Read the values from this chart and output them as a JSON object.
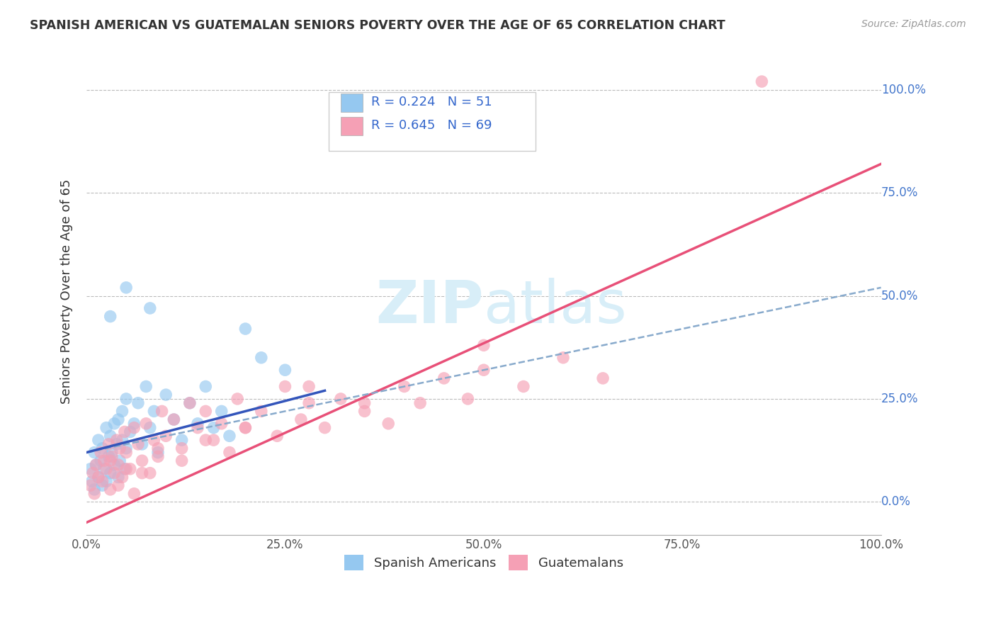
{
  "title": "SPANISH AMERICAN VS GUATEMALAN SENIORS POVERTY OVER THE AGE OF 65 CORRELATION CHART",
  "source": "Source: ZipAtlas.com",
  "ylabel": "Seniors Poverty Over the Age of 65",
  "xlim": [
    0,
    1.0
  ],
  "ylim": [
    -0.08,
    1.1
  ],
  "xtick_labels": [
    "0.0%",
    "25.0%",
    "50.0%",
    "75.0%",
    "100.0%"
  ],
  "xtick_vals": [
    0,
    0.25,
    0.5,
    0.75,
    1.0
  ],
  "ytick_vals": [
    0,
    0.25,
    0.5,
    0.75,
    1.0
  ],
  "right_ytick_labels": [
    "100.0%",
    "75.0%",
    "50.0%",
    "25.0%",
    "0.0%"
  ],
  "right_ytick_positions": [
    1.0,
    0.75,
    0.5,
    0.25,
    0.0
  ],
  "legend_r1": "R = 0.224",
  "legend_n1": "N = 51",
  "legend_r2": "R = 0.645",
  "legend_n2": "N = 69",
  "color_blue": "#95C8F0",
  "color_pink": "#F5A0B5",
  "color_trendline_blue": "#3355BB",
  "color_trendline_pink": "#E85078",
  "color_trendline_dashed": "#88AACC",
  "watermark_color": "#D8EEF8",
  "background_color": "#FFFFFF",
  "grid_color": "#BBBBBB",
  "title_color": "#333333",
  "scatter_blue_x": [
    0.005,
    0.007,
    0.01,
    0.01,
    0.012,
    0.015,
    0.015,
    0.018,
    0.02,
    0.02,
    0.022,
    0.025,
    0.025,
    0.028,
    0.03,
    0.03,
    0.032,
    0.035,
    0.035,
    0.038,
    0.04,
    0.04,
    0.042,
    0.045,
    0.045,
    0.048,
    0.05,
    0.05,
    0.055,
    0.06,
    0.065,
    0.07,
    0.075,
    0.08,
    0.085,
    0.09,
    0.1,
    0.11,
    0.12,
    0.13,
    0.14,
    0.15,
    0.16,
    0.17,
    0.18,
    0.2,
    0.22,
    0.25,
    0.08,
    0.05,
    0.03
  ],
  "scatter_blue_y": [
    0.08,
    0.05,
    0.12,
    0.03,
    0.09,
    0.06,
    0.15,
    0.1,
    0.04,
    0.13,
    0.08,
    0.18,
    0.05,
    0.11,
    0.07,
    0.16,
    0.12,
    0.09,
    0.19,
    0.14,
    0.06,
    0.2,
    0.1,
    0.15,
    0.22,
    0.08,
    0.13,
    0.25,
    0.17,
    0.19,
    0.24,
    0.14,
    0.28,
    0.18,
    0.22,
    0.12,
    0.26,
    0.2,
    0.15,
    0.24,
    0.19,
    0.28,
    0.18,
    0.22,
    0.16,
    0.42,
    0.35,
    0.32,
    0.47,
    0.52,
    0.45
  ],
  "scatter_pink_x": [
    0.005,
    0.008,
    0.01,
    0.012,
    0.015,
    0.018,
    0.02,
    0.022,
    0.025,
    0.028,
    0.03,
    0.032,
    0.035,
    0.038,
    0.04,
    0.042,
    0.045,
    0.048,
    0.05,
    0.055,
    0.06,
    0.065,
    0.07,
    0.075,
    0.08,
    0.085,
    0.09,
    0.095,
    0.1,
    0.11,
    0.12,
    0.13,
    0.14,
    0.15,
    0.16,
    0.17,
    0.18,
    0.19,
    0.2,
    0.22,
    0.24,
    0.25,
    0.27,
    0.28,
    0.3,
    0.32,
    0.35,
    0.38,
    0.4,
    0.42,
    0.45,
    0.48,
    0.5,
    0.55,
    0.6,
    0.65,
    0.5,
    0.35,
    0.28,
    0.2,
    0.15,
    0.12,
    0.09,
    0.07,
    0.05,
    0.04,
    0.03,
    0.06,
    0.85
  ],
  "scatter_pink_y": [
    0.04,
    0.07,
    0.02,
    0.09,
    0.06,
    0.12,
    0.05,
    0.1,
    0.08,
    0.14,
    0.03,
    0.11,
    0.07,
    0.15,
    0.09,
    0.13,
    0.06,
    0.17,
    0.12,
    0.08,
    0.18,
    0.14,
    0.1,
    0.19,
    0.07,
    0.15,
    0.11,
    0.22,
    0.16,
    0.2,
    0.13,
    0.24,
    0.18,
    0.22,
    0.15,
    0.19,
    0.12,
    0.25,
    0.18,
    0.22,
    0.16,
    0.28,
    0.2,
    0.24,
    0.18,
    0.25,
    0.22,
    0.19,
    0.28,
    0.24,
    0.3,
    0.25,
    0.32,
    0.28,
    0.35,
    0.3,
    0.38,
    0.24,
    0.28,
    0.18,
    0.15,
    0.1,
    0.13,
    0.07,
    0.08,
    0.04,
    0.1,
    0.02,
    1.02
  ],
  "trendline_blue_x0": 0.0,
  "trendline_blue_y0": 0.12,
  "trendline_blue_x1": 0.3,
  "trendline_blue_y1": 0.27,
  "trendline_pink_x0": 0.0,
  "trendline_pink_y0": -0.05,
  "trendline_pink_x1": 1.0,
  "trendline_pink_y1": 0.82,
  "trendline_dashed_x0": 0.0,
  "trendline_dashed_y0": 0.12,
  "trendline_dashed_x1": 1.0,
  "trendline_dashed_y1": 0.52
}
